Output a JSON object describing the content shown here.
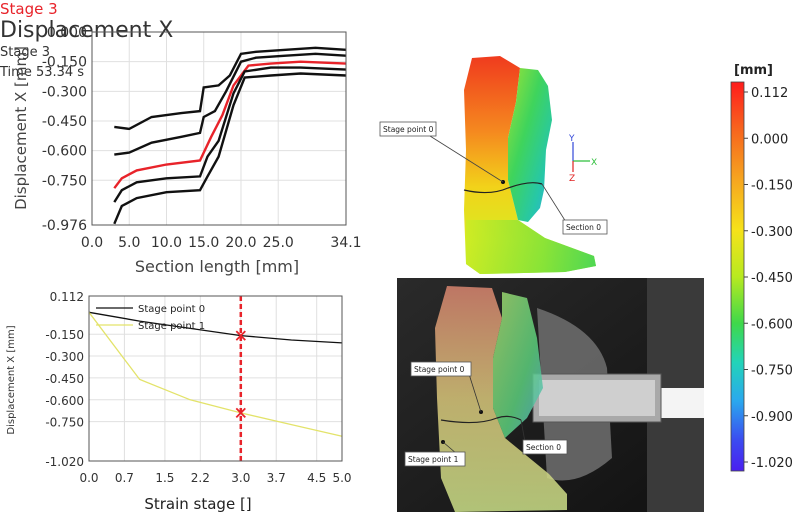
{
  "title": "Displacement X",
  "stage_info": {
    "stage": "Stage 3",
    "time": "Time  53.34 s"
  },
  "footer_stage": "Stage 3",
  "colors": {
    "series_black": "#111111",
    "series_red": "#e8232a",
    "series_yellow": "#e3e36a",
    "cursor": "#e8232a",
    "footer": "#e8232a"
  },
  "chart_data": [
    {
      "type": "line",
      "xlabel": "Section length [mm]",
      "ylabel": "Displacement X [mm]",
      "xlim": [
        0,
        34.1
      ],
      "ylim": [
        -0.976,
        0.0
      ],
      "xticks": [
        0,
        5,
        10,
        15,
        20,
        25,
        34.1
      ],
      "xtick_labels": [
        "0.0",
        "5.0",
        "10.0",
        "15.0",
        "20.0",
        "25.0",
        "34.1"
      ],
      "yticks": [
        0.0,
        -0.15,
        -0.3,
        -0.45,
        -0.6,
        -0.75,
        -0.976
      ],
      "ytick_labels": [
        "0.000",
        "-0.150",
        "-0.300",
        "-0.450",
        "-0.600",
        "-0.750",
        "-0.976"
      ],
      "grid": true,
      "series": [
        {
          "color": "black",
          "x": [
            3.0,
            5.0,
            8.0,
            12.0,
            14.5,
            15.0,
            17.0,
            18.5,
            20.0,
            22.0,
            26.0,
            30.0,
            34.1
          ],
          "y": [
            -0.48,
            -0.49,
            -0.43,
            -0.41,
            -0.4,
            -0.28,
            -0.27,
            -0.22,
            -0.11,
            -0.1,
            -0.09,
            -0.08,
            -0.09
          ]
        },
        {
          "color": "black",
          "x": [
            3.0,
            5.0,
            8.0,
            12.0,
            14.5,
            15.0,
            16.5,
            18.0,
            20.0,
            22.0,
            26.0,
            30.0,
            34.1
          ],
          "y": [
            -0.62,
            -0.61,
            -0.56,
            -0.53,
            -0.51,
            -0.43,
            -0.4,
            -0.3,
            -0.15,
            -0.13,
            -0.12,
            -0.11,
            -0.12
          ]
        },
        {
          "color": "red",
          "x": [
            3.0,
            4.0,
            6.0,
            10.0,
            14.5,
            16.0,
            17.5,
            19.0,
            21.0,
            24.0,
            28.0,
            34.1
          ],
          "y": [
            -0.79,
            -0.74,
            -0.7,
            -0.67,
            -0.65,
            -0.53,
            -0.42,
            -0.27,
            -0.17,
            -0.16,
            -0.15,
            -0.16
          ]
        },
        {
          "color": "black",
          "x": [
            3.0,
            4.0,
            6.0,
            10.0,
            14.5,
            15.5,
            17.0,
            19.0,
            20.5,
            24.0,
            28.0,
            34.1
          ],
          "y": [
            -0.86,
            -0.8,
            -0.76,
            -0.74,
            -0.73,
            -0.63,
            -0.55,
            -0.31,
            -0.2,
            -0.18,
            -0.18,
            -0.19
          ]
        },
        {
          "color": "black",
          "x": [
            3.0,
            4.0,
            6.0,
            10.0,
            14.5,
            15.5,
            17.0,
            19.0,
            20.5,
            24.0,
            28.0,
            34.1
          ],
          "y": [
            -0.97,
            -0.88,
            -0.84,
            -0.81,
            -0.8,
            -0.73,
            -0.63,
            -0.37,
            -0.23,
            -0.22,
            -0.21,
            -0.22
          ]
        }
      ]
    },
    {
      "type": "line",
      "xlabel": "Strain stage []",
      "ylabel": "Displacement X [mm]",
      "xlim": [
        0,
        5.0
      ],
      "ylim": [
        -1.02,
        0.112
      ],
      "xticks": [
        0,
        0.7,
        1.5,
        2.2,
        3.0,
        3.7,
        4.5,
        5.0
      ],
      "xtick_labels": [
        "0.0",
        "0.7",
        "1.5",
        "2.2",
        "3.0",
        "3.7",
        "4.5",
        "5.0"
      ],
      "yticks": [
        0.112,
        -0.15,
        -0.3,
        -0.45,
        -0.6,
        -0.75,
        -1.02
      ],
      "ytick_labels": [
        "0.112",
        "-0.150",
        "-0.300",
        "-0.450",
        "-0.600",
        "-0.750",
        "-1.020"
      ],
      "grid": true,
      "legend_position": "top-left",
      "cursor_x": 3.0,
      "series": [
        {
          "name": "Stage point 0",
          "color": "black",
          "x": [
            0,
            1,
            2,
            3,
            4,
            5
          ],
          "y": [
            0.0,
            -0.06,
            -0.11,
            -0.16,
            -0.19,
            -0.21
          ]
        },
        {
          "name": "Stage point 1",
          "color": "yellow",
          "x": [
            0,
            1,
            2,
            3,
            4,
            5
          ],
          "y": [
            0.0,
            -0.46,
            -0.6,
            -0.69,
            -0.77,
            -0.85
          ]
        }
      ],
      "markers": [
        {
          "x": 3.0,
          "y": -0.16
        },
        {
          "x": 3.0,
          "y": -0.69
        }
      ]
    }
  ],
  "colorbar": {
    "unit": "[mm]",
    "labels": [
      "0.112",
      "0.000",
      "-0.150",
      "-0.300",
      "-0.450",
      "-0.600",
      "-0.750",
      "-0.900",
      "-1.020"
    ]
  },
  "contour_labels": {
    "stage_point": "Stage point 0",
    "section": "Section 0"
  },
  "axes_triad": {
    "y": "Y",
    "x": "X",
    "z": "Z"
  },
  "photo_labels": {
    "stage_point_0": "Stage point 0",
    "stage_point_1": "Stage point 1",
    "section": "Section 0"
  }
}
